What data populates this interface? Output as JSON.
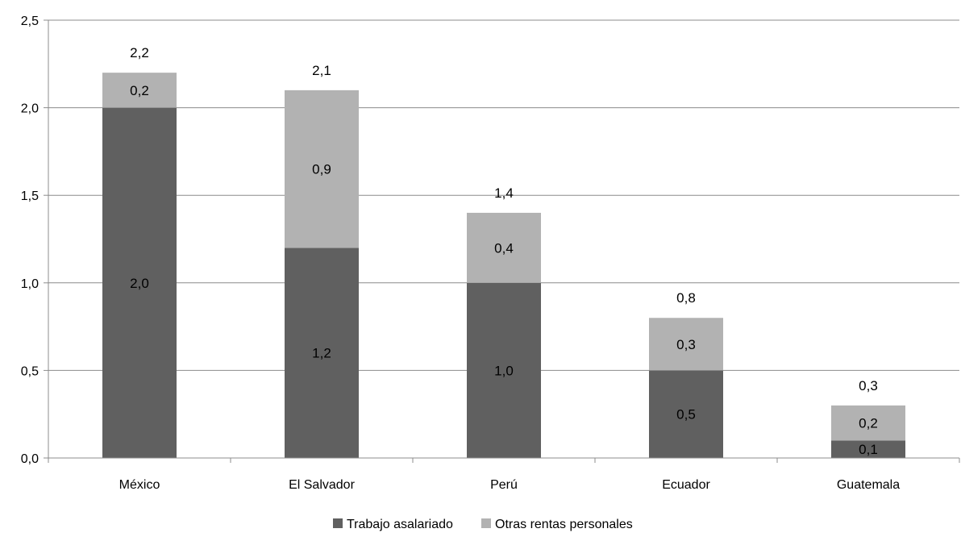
{
  "chart_data": {
    "type": "bar",
    "stacked": true,
    "categories": [
      "México",
      "El Salvador",
      "Perú",
      "Ecuador",
      "Guatemala"
    ],
    "series": [
      {
        "name": "Trabajo asalariado",
        "color": "#606060",
        "values": [
          2.0,
          1.2,
          1.0,
          0.5,
          0.1
        ],
        "labels": [
          "2,0",
          "1,2",
          "1,0",
          "0,5",
          "0,1"
        ]
      },
      {
        "name": "Otras rentas personales",
        "color": "#b2b2b2",
        "values": [
          0.2,
          0.9,
          0.4,
          0.3,
          0.2
        ],
        "labels": [
          "0,2",
          "0,9",
          "0,4",
          "0,3",
          "0,2"
        ]
      }
    ],
    "totals": [
      2.2,
      2.1,
      1.4,
      0.8,
      0.3
    ],
    "total_labels": [
      "2,2",
      "2,1",
      "1,4",
      "0,8",
      "0,3"
    ],
    "ylim": [
      0,
      2.5
    ],
    "yticks": [
      0,
      0.5,
      1.0,
      1.5,
      2.0,
      2.5
    ],
    "ytick_labels": [
      "0,0",
      "0,5",
      "1,0",
      "1,5",
      "2,0",
      "2,5"
    ],
    "grid": true,
    "legend_position": "bottom-center"
  }
}
